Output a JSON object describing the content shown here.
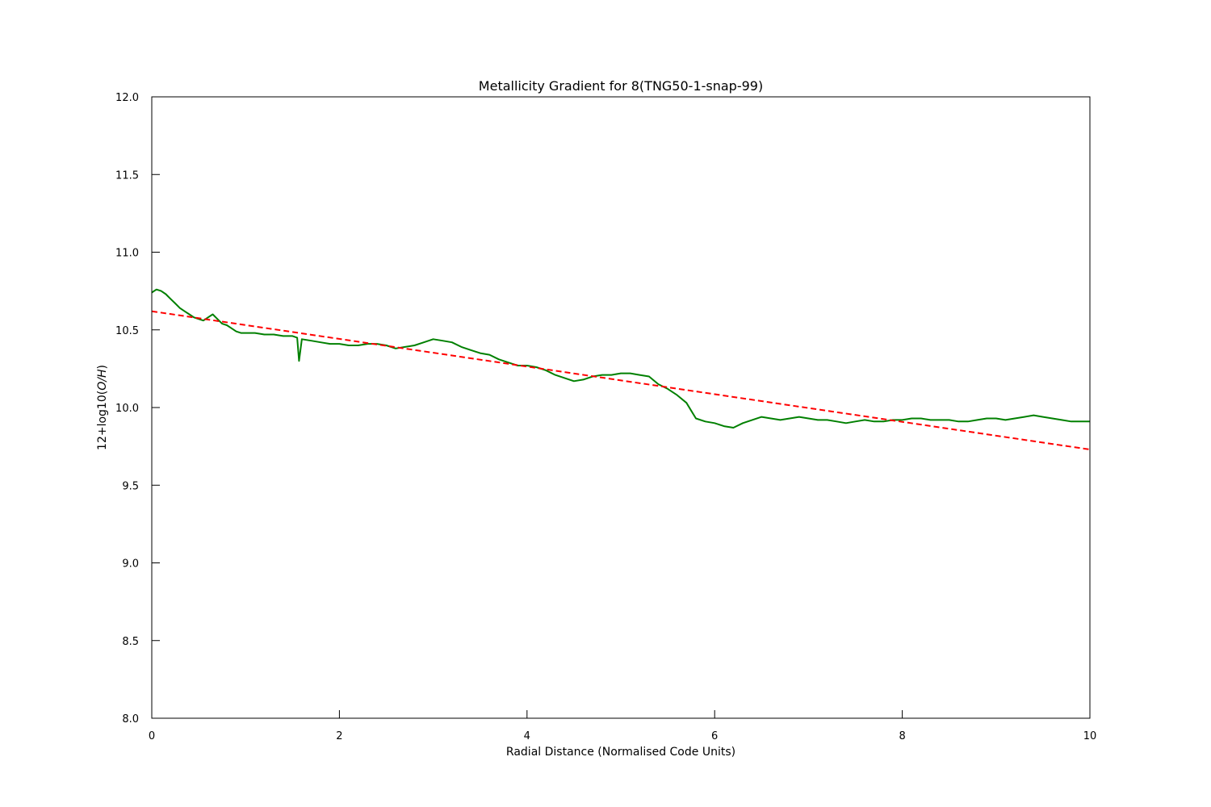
{
  "chart_data": {
    "type": "line",
    "title": "Metallicity Gradient for 8(TNG50-1-snap-99)",
    "xlabel": "Radial Distance (Normalised Code Units)",
    "ylabel_prefix": "12+log10(",
    "ylabel_math": "O/H",
    "ylabel_suffix": ")",
    "xlim": [
      0,
      10
    ],
    "ylim": [
      8.0,
      12.0
    ],
    "xticks": [
      0,
      2,
      4,
      6,
      8,
      10
    ],
    "xtick_labels": [
      "0",
      "2",
      "4",
      "6",
      "8",
      "10"
    ],
    "yticks": [
      8.0,
      8.5,
      9.0,
      9.5,
      10.0,
      10.5,
      11.0,
      11.5,
      12.0
    ],
    "ytick_labels": [
      "8.0",
      "8.5",
      "9.0",
      "9.5",
      "10.0",
      "10.5",
      "11.0",
      "11.5",
      "12.0"
    ],
    "grid": false,
    "series": [
      {
        "style": "solid",
        "color": "#008000",
        "x": [
          0.0,
          0.05,
          0.1,
          0.15,
          0.2,
          0.25,
          0.3,
          0.35,
          0.4,
          0.45,
          0.5,
          0.55,
          0.6,
          0.65,
          0.7,
          0.75,
          0.8,
          0.85,
          0.9,
          0.95,
          1.0,
          1.1,
          1.2,
          1.3,
          1.4,
          1.5,
          1.55,
          1.57,
          1.6,
          1.7,
          1.8,
          1.9,
          2.0,
          2.1,
          2.2,
          2.3,
          2.4,
          2.5,
          2.6,
          2.7,
          2.8,
          2.9,
          3.0,
          3.1,
          3.2,
          3.3,
          3.4,
          3.5,
          3.6,
          3.7,
          3.8,
          3.9,
          4.0,
          4.1,
          4.2,
          4.3,
          4.4,
          4.5,
          4.6,
          4.7,
          4.8,
          4.9,
          5.0,
          5.1,
          5.2,
          5.3,
          5.4,
          5.5,
          5.6,
          5.7,
          5.75,
          5.8,
          5.9,
          6.0,
          6.1,
          6.2,
          6.3,
          6.4,
          6.5,
          6.6,
          6.7,
          6.8,
          6.9,
          7.0,
          7.1,
          7.2,
          7.3,
          7.4,
          7.5,
          7.6,
          7.7,
          7.8,
          7.9,
          8.0,
          8.1,
          8.2,
          8.3,
          8.4,
          8.5,
          8.6,
          8.7,
          8.8,
          8.9,
          9.0,
          9.1,
          9.2,
          9.3,
          9.4,
          9.5,
          9.6,
          9.7,
          9.8,
          9.9,
          10.0
        ],
        "y": [
          10.74,
          10.76,
          10.75,
          10.73,
          10.7,
          10.67,
          10.64,
          10.62,
          10.6,
          10.58,
          10.57,
          10.56,
          10.58,
          10.6,
          10.57,
          10.54,
          10.53,
          10.51,
          10.49,
          10.48,
          10.48,
          10.48,
          10.47,
          10.47,
          10.46,
          10.46,
          10.45,
          10.3,
          10.44,
          10.43,
          10.42,
          10.41,
          10.41,
          10.4,
          10.4,
          10.41,
          10.41,
          10.4,
          10.38,
          10.39,
          10.4,
          10.42,
          10.44,
          10.43,
          10.42,
          10.39,
          10.37,
          10.35,
          10.34,
          10.31,
          10.29,
          10.27,
          10.27,
          10.26,
          10.24,
          10.21,
          10.19,
          10.17,
          10.18,
          10.2,
          10.21,
          10.21,
          10.22,
          10.22,
          10.21,
          10.2,
          10.15,
          10.12,
          10.08,
          10.03,
          9.98,
          9.93,
          9.91,
          9.9,
          9.88,
          9.87,
          9.9,
          9.92,
          9.94,
          9.93,
          9.92,
          9.93,
          9.94,
          9.93,
          9.92,
          9.92,
          9.91,
          9.9,
          9.91,
          9.92,
          9.91,
          9.91,
          9.92,
          9.92,
          9.93,
          9.93,
          9.92,
          9.92,
          9.92,
          9.91,
          9.91,
          9.92,
          9.93,
          9.93,
          9.92,
          9.93,
          9.94,
          9.95,
          9.94,
          9.93,
          9.92,
          9.91,
          9.91,
          9.91
        ]
      },
      {
        "style": "dashed",
        "color": "#ff0000",
        "x": [
          0,
          10
        ],
        "y": [
          10.62,
          9.73
        ]
      }
    ]
  }
}
